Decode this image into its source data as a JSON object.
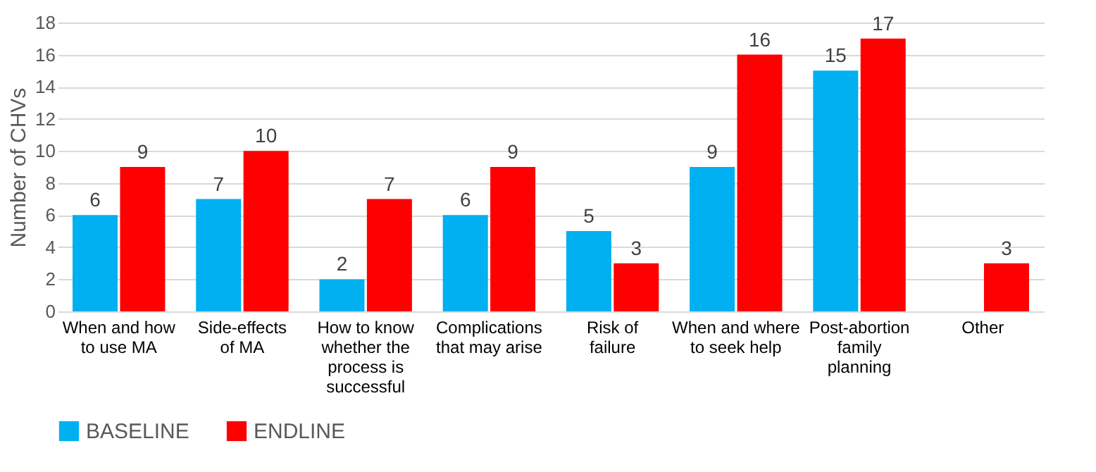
{
  "chart_data": {
    "type": "bar",
    "ylabel": "Number of CHVs",
    "categories": [
      "When and how to use MA",
      "Side-effects of MA",
      "How to know whether the process is successful",
      "Complications that may arise",
      "Risk of failure",
      "When and where to seek help",
      "Post-abortion family planning",
      "Other"
    ],
    "series": [
      {
        "name": "BASELINE",
        "color": "#00b0f0",
        "values": [
          6,
          7,
          2,
          6,
          5,
          9,
          15,
          null
        ]
      },
      {
        "name": "ENDLINE",
        "color": "#ff0000",
        "values": [
          9,
          10,
          7,
          9,
          3,
          16,
          17,
          3
        ]
      }
    ],
    "ylim": [
      0,
      18
    ],
    "yticks": [
      0,
      2,
      4,
      6,
      8,
      10,
      12,
      14,
      16,
      18
    ],
    "grid": "y",
    "legend": "bottom",
    "data_labels": true
  }
}
